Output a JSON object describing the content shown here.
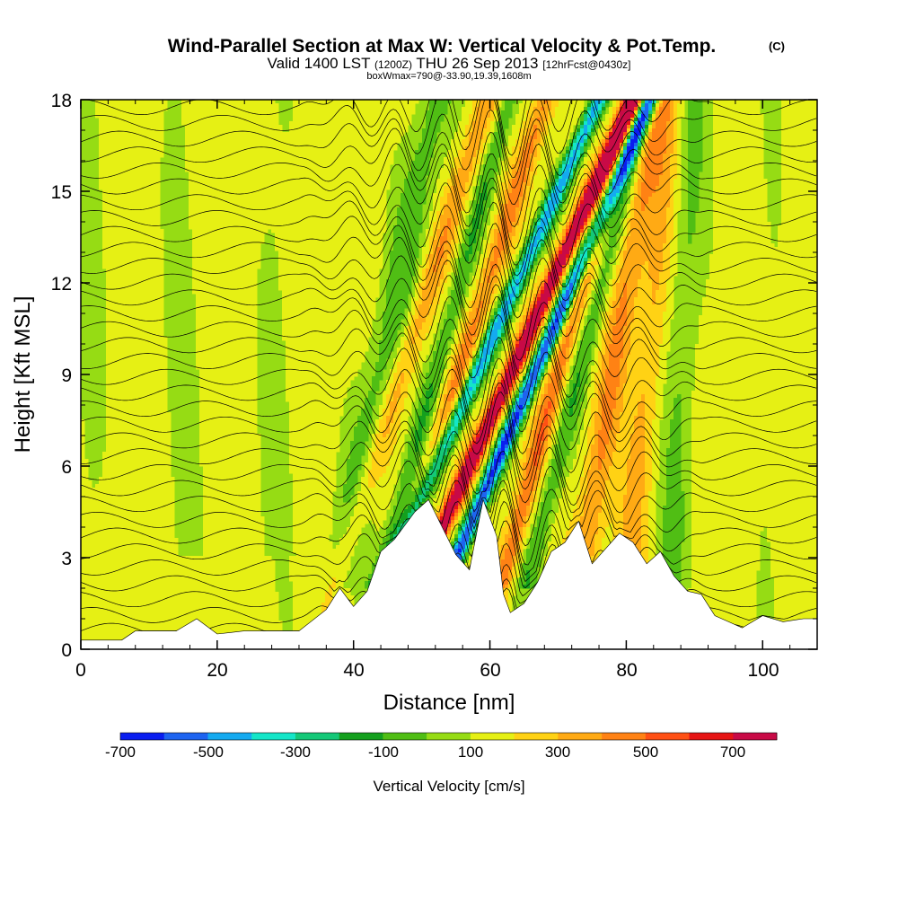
{
  "header": {
    "title": "Wind-Parallel Section at Max W: Vertical Velocity & Pot.Temp.",
    "copyright": "(C)",
    "valid_prefix": "Valid 1400 LST",
    "valid_utc": "(1200Z)",
    "valid_date": "THU 26 Sep 2013",
    "forecast": "[12hrFcst@0430z]",
    "box_info": "boxWmax=790@-33.90,19.39,1608m"
  },
  "chart_data": {
    "type": "heatmap",
    "xlabel": "Distance [nm]",
    "ylabel": "Height [Kft MSL]",
    "xlim": [
      0,
      108
    ],
    "ylim": [
      0,
      18
    ],
    "x_ticks": [
      "0",
      "20",
      "40",
      "60",
      "80",
      "100"
    ],
    "y_ticks": [
      "0",
      "3",
      "6",
      "9",
      "12",
      "15",
      "18"
    ],
    "colorbar": {
      "label": "Vertical Velocity [cm/s]",
      "tick_labels": [
        "-700",
        "-500",
        "-300",
        "-100",
        "100",
        "300",
        "500",
        "700"
      ],
      "levels": [
        -800,
        -700,
        -600,
        -500,
        -400,
        -300,
        -200,
        -100,
        0,
        100,
        200,
        300,
        400,
        500,
        600,
        700,
        800
      ],
      "colors": [
        "#0a1ef0",
        "#1e64f0",
        "#14aaf0",
        "#14e6c8",
        "#14c878",
        "#14a01e",
        "#50be14",
        "#96dc14",
        "#e6f014",
        "#ffd214",
        "#ffaa14",
        "#ff8214",
        "#ff5014",
        "#e61414",
        "#c80a46"
      ]
    },
    "terrain": {
      "x": [
        0,
        6,
        8,
        14,
        17,
        20,
        24,
        28,
        32,
        36,
        38,
        40,
        42,
        44,
        46,
        49,
        51,
        53,
        55,
        57,
        59,
        61,
        62,
        63,
        65,
        67,
        69,
        71,
        73,
        75,
        77,
        79,
        81,
        83,
        85,
        87,
        89,
        91,
        93,
        95,
        97,
        100,
        103,
        106,
        108
      ],
      "height_kft": [
        0.3,
        0.3,
        0.6,
        0.6,
        1.0,
        0.5,
        0.6,
        0.6,
        0.6,
        1.3,
        2.0,
        1.4,
        1.9,
        3.2,
        3.6,
        4.5,
        4.9,
        4.0,
        3.1,
        2.6,
        4.9,
        3.7,
        1.8,
        1.2,
        1.5,
        2.2,
        3.2,
        3.5,
        4.2,
        2.8,
        3.3,
        3.8,
        3.5,
        2.8,
        3.2,
        2.4,
        1.9,
        1.8,
        1.1,
        0.9,
        0.7,
        1.1,
        0.9,
        1.0,
        1.0
      ]
    }
  }
}
